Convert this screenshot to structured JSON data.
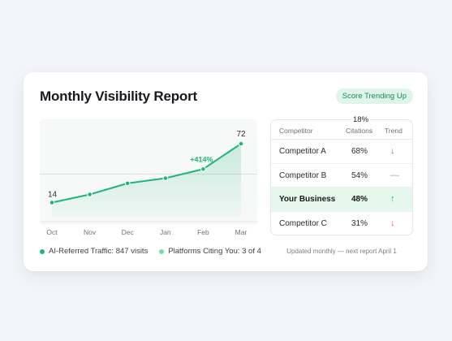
{
  "report": {
    "title": "Monthly Visibility Report",
    "badge": "Score Trending Up"
  },
  "colors": {
    "accent": "#1fb57a",
    "accent_light": "#7fd6a8",
    "up": "#1fb57a",
    "down": "#e05a4a",
    "flat": "#9aa0a8"
  },
  "chart_data": {
    "type": "area",
    "categories": [
      "Oct",
      "Nov",
      "Dec",
      "Jan",
      "Feb",
      "Mar"
    ],
    "series": [
      {
        "values": [
          14,
          22,
          33,
          38,
          47,
          72
        ]
      }
    ],
    "labels": {
      "first": "14",
      "last": "72"
    },
    "annotation": "+414%",
    "ylim": [
      0,
      80
    ],
    "reference_line": 42,
    "grid": false
  },
  "legend": [
    {
      "label": "AI-Referred Traffic: 847 visits",
      "color": "#1fb57a"
    },
    {
      "label": "Platforms Citing You: 3 of 4",
      "color": "#7fd6a8"
    }
  ],
  "table": {
    "header_above": "18%",
    "columns": [
      "Competitor",
      "Citations",
      "Trend"
    ],
    "rows": [
      {
        "name": "Competitor A",
        "citations": "68%",
        "trend": "↓",
        "trend_type": "down",
        "highlight": false
      },
      {
        "name": "Competitor B",
        "citations": "54%",
        "trend": "—",
        "trend_type": "flat",
        "highlight": false
      },
      {
        "name": "Your Business",
        "citations": "48%",
        "trend": "↑",
        "trend_type": "up",
        "highlight": true
      },
      {
        "name": "Competitor C",
        "citations": "31%",
        "trend": "↓",
        "trend_type": "down",
        "highlight": false
      }
    ]
  },
  "footnote": "Updated monthly — next report April 1"
}
